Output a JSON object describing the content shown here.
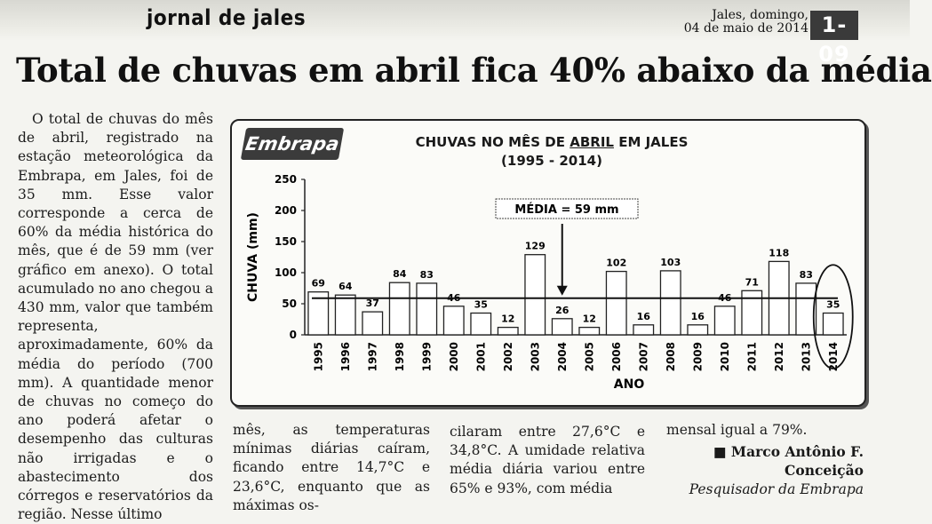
{
  "header": {
    "paper_name": "jornal de jales",
    "date_line1": "Jales, domingo,",
    "date_line2": "04 de maio de 2014",
    "page": "1-09"
  },
  "headline": "Total de chuvas em abril fica 40% abaixo da média",
  "body": {
    "col1": "O total de chuvas do mês de abril, registrado na estação meteorológica da Embrapa, em Jales, foi de 35 mm. Esse valor corresponde a cerca de 60% da média histórica do mês, que é de 59 mm (ver gráfico em anexo). O total acumulado no ano chegou a 430 mm, valor que também representa, aproximadamente, 60% da média do período (700 mm). A quantidade menor de chuvas no começo do ano poderá afetar o desempenho das culturas não irrigadas e o abastecimento dos córregos e reservatórios da região. Nesse último",
    "col2": "mês, as temperaturas mínimas diárias caíram, ficando entre 14,7°C e 23,6°C, enquanto que as máximas os-",
    "col3": "cilaram entre 27,6°C e 34,8°C. A umidade relativa média diária variou entre 65% e 93%, com média",
    "col4": "mensal igual a 79%."
  },
  "author": {
    "name_line1": "■ Marco Antônio F.",
    "name_line2": "Conceição",
    "role": "Pesquisador da Embrapa"
  },
  "logo_text": "Embrapa",
  "chart_data": {
    "type": "bar",
    "title_pre": "CHUVAS NO MÊS DE ",
    "title_em": "ABRIL",
    "title_post": " EM JALES",
    "subtitle": "(1995 - 2014)",
    "xlabel": "ANO",
    "ylabel": "CHUVA (mm)",
    "ylim": [
      0,
      250
    ],
    "yticks": [
      0,
      50,
      100,
      150,
      200,
      250
    ],
    "categories": [
      "1995",
      "1996",
      "1997",
      "1998",
      "1999",
      "2000",
      "2001",
      "2002",
      "2003",
      "2004",
      "2005",
      "2006",
      "2007",
      "2008",
      "2009",
      "2010",
      "2011",
      "2012",
      "2013",
      "2014"
    ],
    "values": [
      69,
      64,
      37,
      84,
      83,
      46,
      35,
      12,
      129,
      26,
      12,
      102,
      16,
      103,
      16,
      46,
      71,
      118,
      83,
      35
    ],
    "mean": 59,
    "mean_label": "MÉDIA = 59 mm",
    "highlight": "2014",
    "colors": {
      "bar_fill": "#ffffff",
      "stroke": "#222222"
    }
  }
}
